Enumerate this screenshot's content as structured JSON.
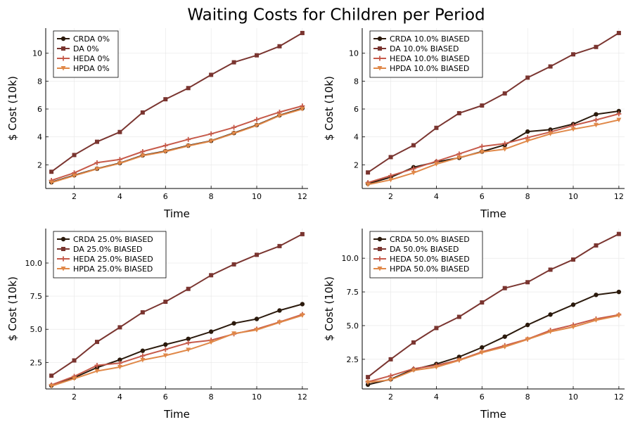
{
  "figure": {
    "title": "Waiting Costs for Children per Period"
  },
  "series_styles": [
    {
      "key": "CRDA",
      "color": "#2b1a0d",
      "marker": "circle"
    },
    {
      "key": "DA",
      "color": "#7a3530",
      "marker": "square"
    },
    {
      "key": "HEDA",
      "color": "#c65a4a",
      "marker": "cross"
    },
    {
      "key": "HPDA",
      "color": "#e08848",
      "marker": "triangle-down"
    }
  ],
  "chart_data": [
    {
      "type": "line",
      "title": "",
      "xlabel": "Time",
      "ylabel": "$ Cost (10k)",
      "xlim": [
        0.75,
        12.25
      ],
      "ylim": [
        0.3,
        11.8
      ],
      "xticks": [
        2,
        4,
        6,
        8,
        10,
        12
      ],
      "xtick_labels": [
        "2",
        "4",
        "6",
        "8",
        "10",
        "12"
      ],
      "yticks": [
        2,
        4,
        6,
        8,
        10
      ],
      "ytick_labels": [
        "2",
        "4",
        "6",
        "8",
        "10"
      ],
      "legend_position": "top-left",
      "x": [
        1,
        2,
        3,
        4,
        5,
        6,
        7,
        8,
        9,
        10,
        11,
        12
      ],
      "series": [
        {
          "name": "CRDA 0%",
          "values": [
            0.75,
            1.25,
            1.72,
            2.12,
            2.68,
            2.98,
            3.38,
            3.72,
            4.28,
            4.85,
            5.55,
            6.05
          ]
        },
        {
          "name": "DA 0%",
          "values": [
            1.5,
            2.7,
            3.65,
            4.35,
            5.75,
            6.7,
            7.5,
            8.45,
            9.35,
            9.85,
            10.5,
            11.45
          ]
        },
        {
          "name": "HEDA 0%",
          "values": [
            0.88,
            1.42,
            2.15,
            2.38,
            2.95,
            3.38,
            3.82,
            4.22,
            4.68,
            5.25,
            5.78,
            6.22
          ]
        },
        {
          "name": "HPDA 0%",
          "values": [
            0.72,
            1.22,
            1.7,
            2.1,
            2.65,
            2.95,
            3.35,
            3.7,
            4.25,
            4.82,
            5.52,
            6.0
          ]
        }
      ]
    },
    {
      "type": "line",
      "title": "",
      "xlabel": "Time",
      "ylabel": "$ Cost (10k)",
      "xlim": [
        0.75,
        12.25
      ],
      "ylim": [
        0.3,
        11.8
      ],
      "xticks": [
        2,
        4,
        6,
        8,
        10,
        12
      ],
      "xtick_labels": [
        "2",
        "4",
        "6",
        "8",
        "10",
        "12"
      ],
      "yticks": [
        2,
        4,
        6,
        8,
        10
      ],
      "ytick_labels": [
        "2",
        "4",
        "6",
        "8",
        "10"
      ],
      "legend_position": "top-left",
      "x": [
        1,
        2,
        3,
        4,
        5,
        6,
        7,
        8,
        9,
        10,
        11,
        12
      ],
      "series": [
        {
          "name": "CRDA 10.0% BIASED",
          "values": [
            0.65,
            1.1,
            1.82,
            2.2,
            2.5,
            2.95,
            3.42,
            4.38,
            4.52,
            4.92,
            5.62,
            5.85
          ]
        },
        {
          "name": "DA 10.0% BIASED",
          "values": [
            1.45,
            2.55,
            3.4,
            4.65,
            5.7,
            6.25,
            7.12,
            8.25,
            9.05,
            9.92,
            10.45,
            11.45
          ]
        },
        {
          "name": "HEDA 10.0% BIASED",
          "values": [
            0.72,
            1.22,
            1.72,
            2.25,
            2.78,
            3.32,
            3.52,
            3.95,
            4.35,
            4.82,
            5.22,
            5.65
          ]
        },
        {
          "name": "HPDA 10.0% BIASED",
          "values": [
            0.58,
            0.92,
            1.42,
            2.05,
            2.52,
            2.92,
            3.12,
            3.72,
            4.22,
            4.55,
            4.85,
            5.22
          ]
        }
      ]
    },
    {
      "type": "line",
      "title": "",
      "xlabel": "Time",
      "ylabel": "$ Cost (10k)",
      "xlim": [
        0.75,
        12.25
      ],
      "ylim": [
        0.5,
        12.6
      ],
      "xticks": [
        2,
        4,
        6,
        8,
        10,
        12
      ],
      "xtick_labels": [
        "2",
        "4",
        "6",
        "8",
        "10",
        "12"
      ],
      "yticks": [
        2.5,
        5.0,
        7.5,
        10.0
      ],
      "ytick_labels": [
        "2.5",
        "5.0",
        "7.5",
        "10.0"
      ],
      "legend_position": "top-left",
      "x": [
        1,
        2,
        3,
        4,
        5,
        6,
        7,
        8,
        9,
        10,
        11,
        12
      ],
      "series": [
        {
          "name": "CRDA 25.0% BIASED",
          "values": [
            0.75,
            1.35,
            2.12,
            2.7,
            3.38,
            3.85,
            4.28,
            4.82,
            5.45,
            5.78,
            6.42,
            6.9
          ]
        },
        {
          "name": "DA 25.0% BIASED",
          "values": [
            1.5,
            2.65,
            4.05,
            5.15,
            6.28,
            7.08,
            8.05,
            9.08,
            9.9,
            10.62,
            11.28,
            12.18
          ]
        },
        {
          "name": "HEDA 25.0% BIASED",
          "values": [
            0.8,
            1.45,
            2.28,
            2.45,
            3.0,
            3.48,
            3.98,
            4.18,
            4.65,
            5.02,
            5.55,
            6.12
          ]
        },
        {
          "name": "HPDA 25.0% BIASED",
          "values": [
            0.72,
            1.28,
            1.85,
            2.15,
            2.68,
            3.02,
            3.45,
            4.02,
            4.68,
            4.95,
            5.52,
            6.05
          ]
        }
      ]
    },
    {
      "type": "line",
      "title": "",
      "xlabel": "Time",
      "ylabel": "$ Cost (10k)",
      "xlim": [
        0.75,
        12.25
      ],
      "ylim": [
        0.3,
        12.2
      ],
      "xticks": [
        2,
        4,
        6,
        8,
        10,
        12
      ],
      "xtick_labels": [
        "2",
        "4",
        "6",
        "8",
        "10",
        "12"
      ],
      "yticks": [
        2.5,
        5.0,
        7.5,
        10.0
      ],
      "ytick_labels": [
        "2.5",
        "5.0",
        "7.5",
        "10.0"
      ],
      "legend_position": "top-left",
      "x": [
        1,
        2,
        3,
        4,
        5,
        6,
        7,
        8,
        9,
        10,
        11,
        12
      ],
      "series": [
        {
          "name": "CRDA 50.0% BIASED",
          "values": [
            0.62,
            1.02,
            1.75,
            2.15,
            2.68,
            3.38,
            4.18,
            5.05,
            5.82,
            6.55,
            7.28,
            7.5
          ]
        },
        {
          "name": "DA 50.0% BIASED",
          "values": [
            1.18,
            2.5,
            3.75,
            4.82,
            5.65,
            6.72,
            7.78,
            8.22,
            9.15,
            9.9,
            10.95,
            11.8
          ]
        },
        {
          "name": "HEDA 50.0% BIASED",
          "values": [
            0.82,
            1.28,
            1.8,
            2.05,
            2.45,
            3.05,
            3.52,
            4.0,
            4.65,
            5.05,
            5.5,
            5.8
          ]
        },
        {
          "name": "HPDA 50.0% BIASED",
          "values": [
            0.78,
            0.98,
            1.68,
            1.92,
            2.42,
            3.0,
            3.42,
            3.98,
            4.55,
            4.9,
            5.4,
            5.75
          ]
        }
      ]
    }
  ]
}
